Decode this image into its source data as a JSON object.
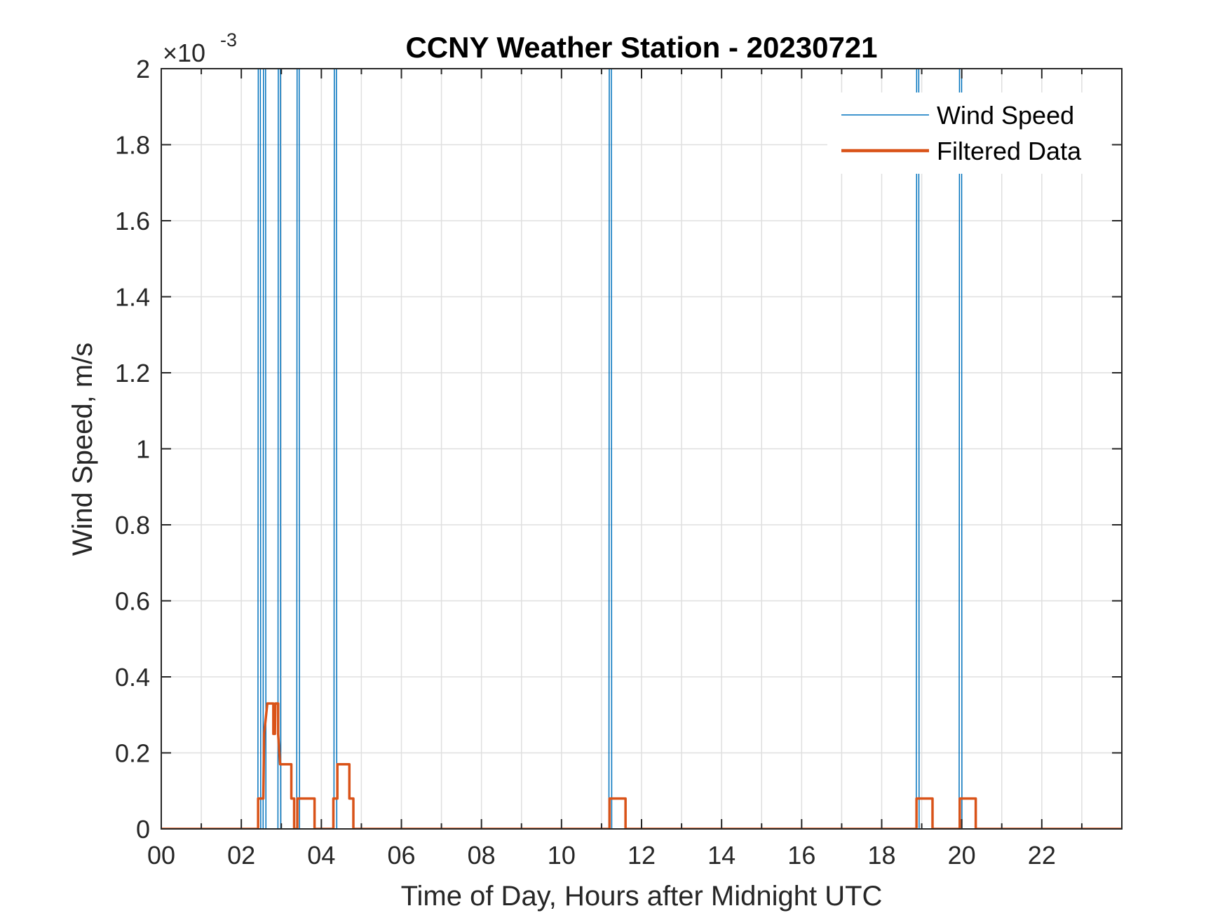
{
  "chart_data": {
    "type": "line",
    "title": "CCNY Weather Station - 20230721",
    "xlabel": "Time of Day, Hours after Midnight UTC",
    "ylabel": "Wind Speed, m/s",
    "exponent": "-3",
    "exponent_prefix": "×10",
    "xlim": [
      0,
      24
    ],
    "ylim": [
      0,
      0.002
    ],
    "grid": true,
    "legend_location": "top-right",
    "x_ticks": [
      0,
      2,
      4,
      6,
      8,
      10,
      12,
      14,
      16,
      18,
      20,
      22
    ],
    "x_tick_labels": [
      "00",
      "02",
      "04",
      "06",
      "08",
      "10",
      "12",
      "14",
      "16",
      "18",
      "20",
      "22"
    ],
    "y_ticks": [
      0,
      0.0002,
      0.0004,
      0.0006,
      0.0008,
      0.001,
      0.0012,
      0.0014,
      0.0016,
      0.0018,
      0.002
    ],
    "y_tick_labels": [
      "0",
      "0.2",
      "0.4",
      "0.6",
      "0.8",
      "1",
      "1.2",
      "1.4",
      "1.6",
      "1.8",
      "2"
    ],
    "series": [
      {
        "name": "Wind Speed",
        "color": "#0072BD",
        "line_width": 1.5,
        "spike_times": [
          2.45,
          2.58,
          2.95,
          3.42,
          4.35,
          11.22,
          18.9,
          19.97
        ],
        "spike_half_width": 0.035,
        "spike_value": 0.004
      },
      {
        "name": "Filtered Data",
        "color": "#D95319",
        "line_width": 3.5,
        "x": [
          0,
          2.35,
          2.42,
          2.42,
          2.55,
          2.57,
          2.65,
          2.65,
          2.8,
          2.8,
          2.84,
          2.85,
          2.92,
          2.92,
          2.97,
          2.97,
          3.25,
          3.25,
          3.32,
          3.32,
          3.4,
          3.4,
          3.83,
          3.83,
          4.3,
          4.3,
          4.4,
          4.4,
          4.7,
          4.7,
          4.8,
          4.8,
          11.2,
          11.2,
          11.6,
          11.6,
          18.87,
          18.87,
          19.27,
          19.27,
          19.95,
          19.95,
          20.35,
          20.35,
          24
        ],
        "y": [
          0,
          0,
          0,
          8e-05,
          8e-05,
          0.00025,
          0.00033,
          0.00033,
          0.00033,
          0.00025,
          0.00025,
          0.00033,
          0.00033,
          0.00025,
          0.00017,
          0.00017,
          0.00017,
          8e-05,
          8e-05,
          0,
          0,
          8e-05,
          8e-05,
          0,
          0,
          8e-05,
          8e-05,
          0.00017,
          0.00017,
          8e-05,
          8e-05,
          0,
          0,
          8e-05,
          8e-05,
          0,
          0,
          8e-05,
          8e-05,
          0,
          0,
          8e-05,
          8e-05,
          0,
          0
        ]
      }
    ]
  }
}
